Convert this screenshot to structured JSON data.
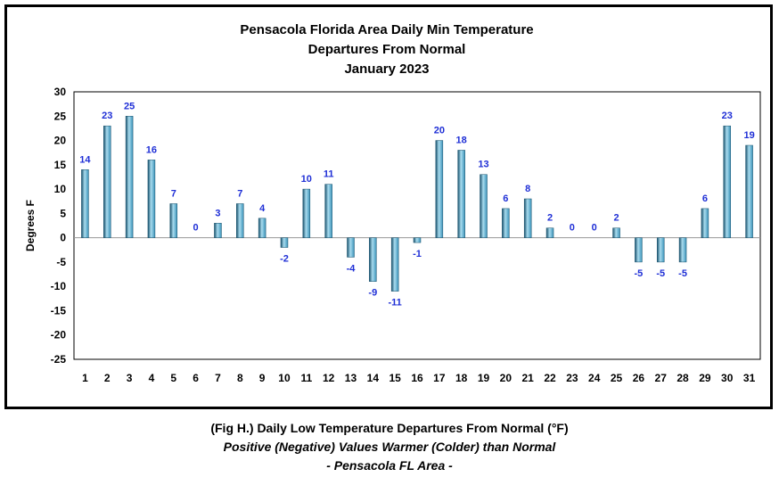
{
  "chart_data": {
    "type": "bar",
    "title_lines": [
      "Pensacola Florida Area Daily Min Temperature",
      "Departures From Normal",
      "January 2023"
    ],
    "xlabel": "",
    "ylabel": "Degrees F",
    "ylim": [
      -25,
      30
    ],
    "yticks": [
      30,
      25,
      20,
      15,
      10,
      5,
      0,
      -5,
      -10,
      -15,
      -20,
      -25
    ],
    "grid": false,
    "legend": "none",
    "categories": [
      "1",
      "2",
      "3",
      "4",
      "5",
      "6",
      "7",
      "8",
      "9",
      "10",
      "11",
      "12",
      "13",
      "14",
      "15",
      "16",
      "17",
      "18",
      "19",
      "20",
      "21",
      "22",
      "23",
      "24",
      "25",
      "26",
      "27",
      "28",
      "29",
      "30",
      "31"
    ],
    "values": [
      14,
      23,
      25,
      16,
      7,
      0,
      3,
      7,
      4,
      -2,
      10,
      11,
      -4,
      -9,
      -11,
      -1,
      20,
      18,
      13,
      6,
      8,
      2,
      0,
      0,
      2,
      -5,
      -5,
      -5,
      6,
      23,
      19
    ],
    "colors": {
      "bar": "#3a92b8",
      "bar_light": "#a9dcef",
      "bar_dark": "#17506b",
      "label": "#1f2fd6",
      "plot_border": "#000000"
    }
  },
  "caption": {
    "line1": "(Fig H.) Daily Low Temperature Departures From Normal (°F)",
    "line2": "Positive (Negative) Values Warmer (Colder) than Normal",
    "line3": "- Pensacola FL Area -"
  }
}
